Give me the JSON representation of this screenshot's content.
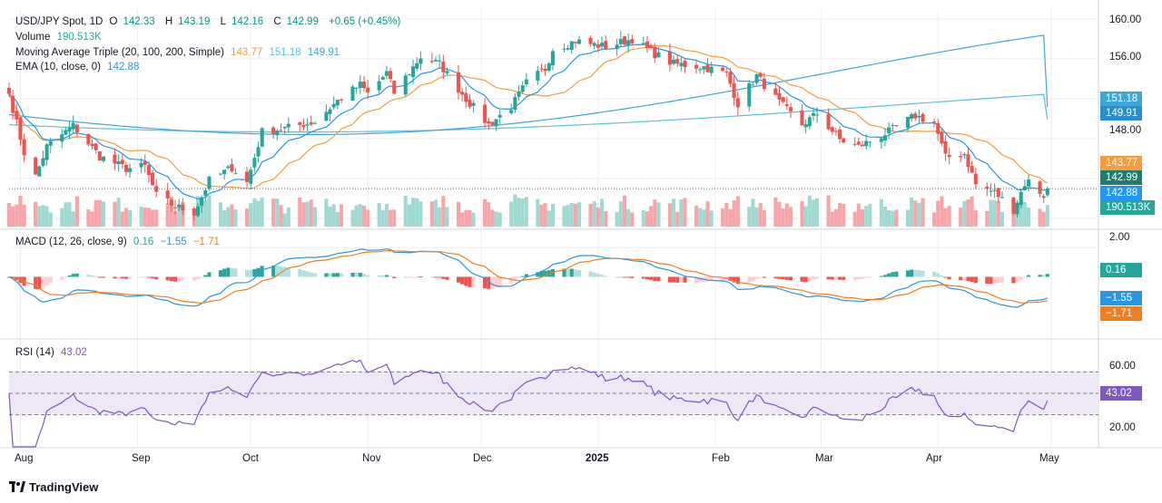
{
  "colors": {
    "up": "#26a69a",
    "down": "#ef5350",
    "vol_up": "#9fd9d2",
    "vol_down": "#f7a5a9",
    "sma20": "#f59c3d",
    "sma100": "#5bc0de",
    "sma200": "#3ea6d8",
    "ema": "#2196f3",
    "macd": "#2b95e0",
    "signal": "#f07e22",
    "hist_up_strong": "#26a69a",
    "hist_up_weak": "#b2dfdb",
    "hist_down_strong": "#ef5350",
    "hist_down_weak": "#ffcdd2",
    "rsi": "#7e57c2",
    "rsi_band": "#ede7f6",
    "grid": "#eceef2"
  },
  "legend": {
    "symbol": "USD/JPY Spot, 1D",
    "o_label": "O",
    "o": "142.33",
    "h_label": "H",
    "h": "143.19",
    "l_label": "L",
    "l": "142.16",
    "c_label": "C",
    "c": "142.99",
    "change": "+0.65 (+0.45%)",
    "volume_label": "Volume",
    "volume": "190.513K",
    "ma_label": "Moving Average Triple (20, 100, 200, Simple)",
    "ma1": "143.77",
    "ma2": "151.18",
    "ma3": "149.91",
    "ema_label": "EMA (10, close, 0)",
    "ema": "142.88",
    "macd_label": "MACD (12, 26, close, 9)",
    "macd_hist": "0.16",
    "macd_line": "−1.55",
    "macd_signal": "−1.71",
    "rsi_label": "RSI (14)",
    "rsi": "43.02"
  },
  "price_axis": [
    "160.00",
    "156.00",
    "152.00",
    "148.00"
  ],
  "macd_axis": [
    "2.00"
  ],
  "rsi_axis": [
    "60.00",
    "20.00"
  ],
  "price_tags": {
    "sma100": "151.18",
    "sma200": "149.91",
    "sma20": "143.77",
    "close": "142.99",
    "ema": "142.88",
    "volume": "190.513K"
  },
  "macd_tags": {
    "hist": "0.16",
    "macd": "−1.55",
    "signal": "−1.71"
  },
  "rsi_tag": "43.02",
  "time_axis": [
    "Aug",
    "Sep",
    "Oct",
    "Nov",
    "Dec",
    "2025",
    "Feb",
    "Mar",
    "Apr",
    "May"
  ],
  "brand": "TradingView",
  "chart_data": {
    "type": "candlestick",
    "title": "USD/JPY Spot, 1D",
    "ylim": [
      139.0,
      161.0
    ],
    "x_range": [
      "2024-07-29",
      "2025-05-01"
    ],
    "rsi_levels": [
      70,
      50,
      30
    ],
    "rsi_ylim": [
      0,
      100
    ],
    "macd_ylim": [
      -4.2,
      3.2
    ],
    "anchors": [
      {
        "date": "2024-07-29",
        "close": 152.5
      },
      {
        "date": "2024-08-02",
        "close": 146.6
      },
      {
        "date": "2024-08-05",
        "close": 144.2
      },
      {
        "date": "2024-08-08",
        "close": 147.2
      },
      {
        "date": "2024-08-15",
        "close": 149.3
      },
      {
        "date": "2024-08-22",
        "close": 146.2
      },
      {
        "date": "2024-08-29",
        "close": 145.0
      },
      {
        "date": "2024-09-03",
        "close": 145.2
      },
      {
        "date": "2024-09-06",
        "close": 142.3
      },
      {
        "date": "2024-09-11",
        "close": 141.2
      },
      {
        "date": "2024-09-16",
        "close": 140.6
      },
      {
        "date": "2024-09-20",
        "close": 143.8
      },
      {
        "date": "2024-09-26",
        "close": 145.1
      },
      {
        "date": "2024-09-30",
        "close": 143.6
      },
      {
        "date": "2024-10-04",
        "close": 148.7
      },
      {
        "date": "2024-10-11",
        "close": 149.1
      },
      {
        "date": "2024-10-18",
        "close": 149.7
      },
      {
        "date": "2024-10-24",
        "close": 151.8
      },
      {
        "date": "2024-10-30",
        "close": 153.4
      },
      {
        "date": "2024-11-01",
        "close": 152.5
      },
      {
        "date": "2024-11-06",
        "close": 154.6
      },
      {
        "date": "2024-11-08",
        "close": 152.6
      },
      {
        "date": "2024-11-15",
        "close": 156.2
      },
      {
        "date": "2024-11-20",
        "close": 155.5
      },
      {
        "date": "2024-11-27",
        "close": 152.0
      },
      {
        "date": "2024-12-03",
        "close": 149.4
      },
      {
        "date": "2024-12-09",
        "close": 151.2
      },
      {
        "date": "2024-12-13",
        "close": 153.6
      },
      {
        "date": "2024-12-18",
        "close": 155.0
      },
      {
        "date": "2024-12-20",
        "close": 157.0
      },
      {
        "date": "2024-12-26",
        "close": 157.8
      },
      {
        "date": "2025-01-03",
        "close": 157.2
      },
      {
        "date": "2025-01-10",
        "close": 158.0
      },
      {
        "date": "2025-01-15",
        "close": 156.7
      },
      {
        "date": "2025-01-21",
        "close": 155.5
      },
      {
        "date": "2025-01-29",
        "close": 155.2
      },
      {
        "date": "2025-02-04",
        "close": 154.5
      },
      {
        "date": "2025-02-07",
        "close": 151.5
      },
      {
        "date": "2025-02-12",
        "close": 154.3
      },
      {
        "date": "2025-02-18",
        "close": 151.6
      },
      {
        "date": "2025-02-24",
        "close": 149.4
      },
      {
        "date": "2025-02-28",
        "close": 150.5
      },
      {
        "date": "2025-03-06",
        "close": 147.9
      },
      {
        "date": "2025-03-11",
        "close": 147.2
      },
      {
        "date": "2025-03-19",
        "close": 148.7
      },
      {
        "date": "2025-03-26",
        "close": 150.3
      },
      {
        "date": "2025-03-31",
        "close": 149.6
      },
      {
        "date": "2025-04-03",
        "close": 146.1
      },
      {
        "date": "2025-04-08",
        "close": 146.5
      },
      {
        "date": "2025-04-11",
        "close": 143.4
      },
      {
        "date": "2025-04-16",
        "close": 142.6
      },
      {
        "date": "2025-04-21",
        "close": 140.9
      },
      {
        "date": "2025-04-24",
        "close": 143.5
      },
      {
        "date": "2025-04-25",
        "close": 143.7
      },
      {
        "date": "2025-04-29",
        "close": 142.3
      },
      {
        "date": "2025-04-30",
        "close": 142.99
      }
    ],
    "last_bar": {
      "open": 142.33,
      "high": 143.19,
      "low": 142.16,
      "close": 142.99,
      "volume": "190.513K"
    },
    "series": [
      {
        "name": "Volume",
        "value": "190.513K"
      },
      {
        "name": "MA 20",
        "value": 143.77
      },
      {
        "name": "MA 100",
        "value": 151.18
      },
      {
        "name": "MA 200",
        "value": 149.91
      },
      {
        "name": "EMA 10",
        "value": 142.88
      },
      {
        "name": "MACD histogram",
        "value": 0.16
      },
      {
        "name": "MACD",
        "value": -1.55
      },
      {
        "name": "Signal",
        "value": -1.71
      },
      {
        "name": "RSI 14",
        "value": 43.02
      }
    ]
  }
}
